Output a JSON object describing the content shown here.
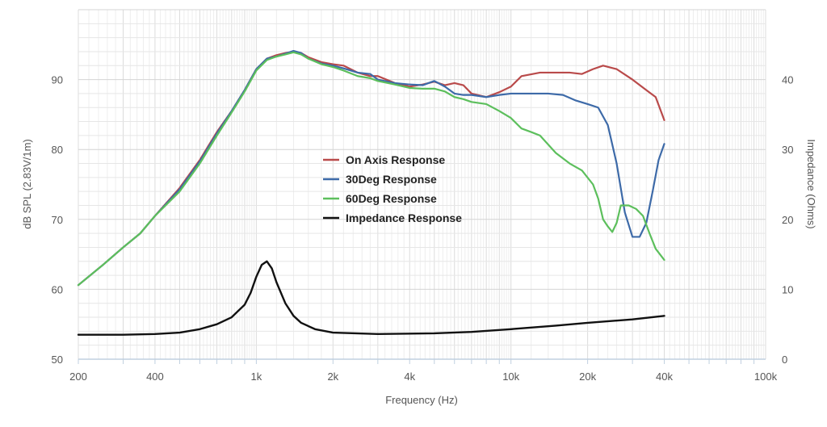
{
  "chart_data": {
    "type": "line",
    "xlabel": "Frequency (Hz)",
    "ylabel": "dB SPL  (2.83V/1m)",
    "y2label": "Impedance (Ohms)",
    "x_scale": "log",
    "xlim": [
      200,
      100000
    ],
    "ylim": [
      50,
      100
    ],
    "y2lim": [
      0,
      50
    ],
    "grid": true,
    "legend_position": "center",
    "x_ticks": [
      {
        "value": 200,
        "label": "200"
      },
      {
        "value": 400,
        "label": "400"
      },
      {
        "value": 1000,
        "label": "1k"
      },
      {
        "value": 2000,
        "label": "2k"
      },
      {
        "value": 4000,
        "label": "4k"
      },
      {
        "value": 10000,
        "label": "10k"
      },
      {
        "value": 20000,
        "label": "20k"
      },
      {
        "value": 40000,
        "label": "40k"
      },
      {
        "value": 100000,
        "label": "100k"
      }
    ],
    "y_ticks": [
      {
        "value": 50,
        "label": "50"
      },
      {
        "value": 60,
        "label": "60"
      },
      {
        "value": 70,
        "label": "70"
      },
      {
        "value": 80,
        "label": "80"
      },
      {
        "value": 90,
        "label": "90"
      }
    ],
    "y2_ticks": [
      {
        "value": 0,
        "label": "0"
      },
      {
        "value": 10,
        "label": "10"
      },
      {
        "value": 20,
        "label": "20"
      },
      {
        "value": 30,
        "label": "30"
      },
      {
        "value": 40,
        "label": "40"
      }
    ],
    "series": [
      {
        "name": "On Axis Response",
        "color": "#b94a4a",
        "axis": "left",
        "points": [
          [
            200,
            60.6
          ],
          [
            250,
            63.5
          ],
          [
            300,
            66
          ],
          [
            350,
            68
          ],
          [
            400,
            70.5
          ],
          [
            500,
            74.5
          ],
          [
            600,
            78.5
          ],
          [
            700,
            82.5
          ],
          [
            800,
            85.5
          ],
          [
            900,
            88.5
          ],
          [
            1000,
            91.5
          ],
          [
            1100,
            93
          ],
          [
            1200,
            93.5
          ],
          [
            1300,
            93.8
          ],
          [
            1400,
            94
          ],
          [
            1500,
            93.8
          ],
          [
            1600,
            93.2
          ],
          [
            1800,
            92.5
          ],
          [
            2000,
            92.2
          ],
          [
            2200,
            92
          ],
          [
            2500,
            91
          ],
          [
            2800,
            90.5
          ],
          [
            3000,
            90.5
          ],
          [
            3500,
            89.5
          ],
          [
            4000,
            89
          ],
          [
            4500,
            89.3
          ],
          [
            5000,
            89.7
          ],
          [
            5500,
            89.2
          ],
          [
            6000,
            89.5
          ],
          [
            6500,
            89.2
          ],
          [
            7000,
            88
          ],
          [
            8000,
            87.5
          ],
          [
            9000,
            88.2
          ],
          [
            10000,
            89
          ],
          [
            11000,
            90.5
          ],
          [
            13000,
            91
          ],
          [
            15000,
            91
          ],
          [
            17000,
            91
          ],
          [
            19000,
            90.8
          ],
          [
            21000,
            91.5
          ],
          [
            23000,
            92
          ],
          [
            26000,
            91.5
          ],
          [
            30000,
            90
          ],
          [
            34000,
            88.5
          ],
          [
            37000,
            87.5
          ],
          [
            40000,
            84.2
          ]
        ]
      },
      {
        "name": "30Deg Response",
        "color": "#3d6aa8",
        "axis": "left",
        "points": [
          [
            200,
            60.6
          ],
          [
            250,
            63.5
          ],
          [
            300,
            66
          ],
          [
            350,
            68
          ],
          [
            400,
            70.5
          ],
          [
            500,
            74.3
          ],
          [
            600,
            78.3
          ],
          [
            700,
            82.3
          ],
          [
            800,
            85.5
          ],
          [
            900,
            88.5
          ],
          [
            1000,
            91.5
          ],
          [
            1100,
            93
          ],
          [
            1200,
            93.3
          ],
          [
            1300,
            93.7
          ],
          [
            1400,
            94.1
          ],
          [
            1500,
            93.8
          ],
          [
            1600,
            93
          ],
          [
            1800,
            92.3
          ],
          [
            2000,
            92
          ],
          [
            2200,
            91.6
          ],
          [
            2500,
            91
          ],
          [
            2800,
            90.8
          ],
          [
            3000,
            90
          ],
          [
            3500,
            89.5
          ],
          [
            4000,
            89.3
          ],
          [
            4500,
            89.2
          ],
          [
            5000,
            89.8
          ],
          [
            5500,
            89
          ],
          [
            6000,
            88
          ],
          [
            6500,
            87.8
          ],
          [
            7000,
            87.8
          ],
          [
            8000,
            87.5
          ],
          [
            9000,
            87.8
          ],
          [
            10000,
            88
          ],
          [
            12000,
            88
          ],
          [
            14000,
            88
          ],
          [
            16000,
            87.8
          ],
          [
            18000,
            87
          ],
          [
            20000,
            86.5
          ],
          [
            22000,
            86
          ],
          [
            24000,
            83.5
          ],
          [
            26000,
            78
          ],
          [
            28000,
            71
          ],
          [
            30000,
            67.5
          ],
          [
            32000,
            67.5
          ],
          [
            34000,
            69.5
          ],
          [
            36000,
            74
          ],
          [
            38000,
            78.5
          ],
          [
            40000,
            80.8
          ]
        ]
      },
      {
        "name": "60Deg Response",
        "color": "#5cbf5c",
        "axis": "left",
        "points": [
          [
            200,
            60.6
          ],
          [
            250,
            63.5
          ],
          [
            300,
            66
          ],
          [
            350,
            68
          ],
          [
            400,
            70.5
          ],
          [
            500,
            74
          ],
          [
            600,
            78
          ],
          [
            700,
            82
          ],
          [
            800,
            85.3
          ],
          [
            900,
            88.3
          ],
          [
            1000,
            91.3
          ],
          [
            1100,
            92.8
          ],
          [
            1200,
            93.3
          ],
          [
            1300,
            93.6
          ],
          [
            1400,
            93.9
          ],
          [
            1500,
            93.6
          ],
          [
            1600,
            93
          ],
          [
            1800,
            92.2
          ],
          [
            2000,
            91.8
          ],
          [
            2200,
            91.3
          ],
          [
            2500,
            90.5
          ],
          [
            2800,
            90.2
          ],
          [
            3000,
            89.8
          ],
          [
            3500,
            89.3
          ],
          [
            4000,
            88.8
          ],
          [
            4500,
            88.7
          ],
          [
            5000,
            88.7
          ],
          [
            5500,
            88.3
          ],
          [
            6000,
            87.5
          ],
          [
            6500,
            87.2
          ],
          [
            7000,
            86.8
          ],
          [
            8000,
            86.5
          ],
          [
            9000,
            85.5
          ],
          [
            10000,
            84.5
          ],
          [
            11000,
            83
          ],
          [
            12000,
            82.5
          ],
          [
            13000,
            82
          ],
          [
            15000,
            79.5
          ],
          [
            17000,
            78
          ],
          [
            19000,
            77
          ],
          [
            21000,
            75
          ],
          [
            22000,
            73
          ],
          [
            23000,
            70
          ],
          [
            24000,
            69
          ],
          [
            25000,
            68.2
          ],
          [
            26000,
            69.5
          ],
          [
            27000,
            72
          ],
          [
            29000,
            72
          ],
          [
            31000,
            71.5
          ],
          [
            33000,
            70.5
          ],
          [
            35000,
            68
          ],
          [
            37000,
            65.8
          ],
          [
            40000,
            64.2
          ]
        ]
      },
      {
        "name": "Impedance Response",
        "color": "#111111",
        "axis": "right",
        "points": [
          [
            200,
            3.5
          ],
          [
            300,
            3.5
          ],
          [
            400,
            3.6
          ],
          [
            500,
            3.8
          ],
          [
            600,
            4.3
          ],
          [
            700,
            5
          ],
          [
            800,
            6
          ],
          [
            900,
            7.8
          ],
          [
            950,
            9.5
          ],
          [
            1000,
            11.8
          ],
          [
            1050,
            13.5
          ],
          [
            1100,
            14
          ],
          [
            1150,
            13
          ],
          [
            1200,
            11
          ],
          [
            1300,
            8
          ],
          [
            1400,
            6.2
          ],
          [
            1500,
            5.2
          ],
          [
            1700,
            4.3
          ],
          [
            2000,
            3.8
          ],
          [
            3000,
            3.6
          ],
          [
            5000,
            3.7
          ],
          [
            7000,
            3.9
          ],
          [
            10000,
            4.3
          ],
          [
            15000,
            4.8
          ],
          [
            20000,
            5.2
          ],
          [
            30000,
            5.7
          ],
          [
            40000,
            6.2
          ]
        ]
      }
    ],
    "legend": [
      "On Axis Response",
      "30Deg Response",
      "60Deg Response",
      "Impedance Response"
    ]
  }
}
